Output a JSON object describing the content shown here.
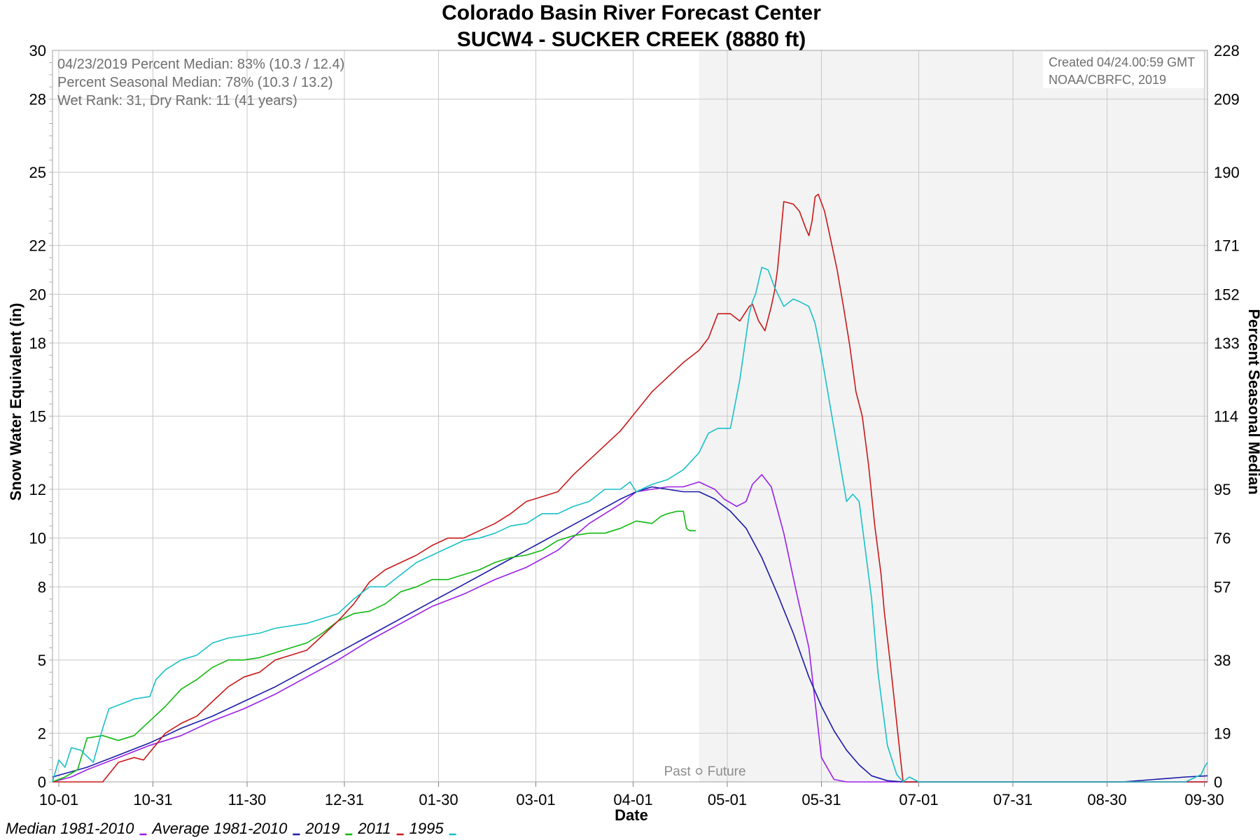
{
  "chart_data": {
    "type": "line",
    "title": "Colorado Basin River Forecast Center",
    "subtitle": "SUCW4 - SUCKER CREEK (8880 ft)",
    "xlabel": "Date",
    "ylabel": "Snow Water Equivalent (in)",
    "y2label": "Percent Seasonal Median",
    "x_ticks": [
      "10-01",
      "10-31",
      "11-30",
      "12-31",
      "01-30",
      "03-01",
      "04-01",
      "05-01",
      "05-31",
      "07-01",
      "07-31",
      "08-30",
      "09-30"
    ],
    "x_tick_days": [
      1,
      31,
      61,
      92,
      122,
      153,
      184,
      214,
      244,
      275,
      305,
      335,
      366
    ],
    "xlim": [
      -1,
      367
    ],
    "y_ticks": [
      0,
      2,
      5,
      8,
      10,
      12,
      15,
      18,
      20,
      22,
      25,
      28,
      30
    ],
    "ylim": [
      0,
      30
    ],
    "y2_ticks": [
      0,
      19,
      38,
      57,
      76,
      95,
      114,
      133,
      152,
      171,
      190,
      209,
      228
    ],
    "y2lim": [
      0,
      228
    ],
    "grid": true,
    "legend_position": "bottom-left",
    "annotations": {
      "stats": [
        "04/23/2019 Percent Median: 83% (10.3 / 12.4)",
        "Percent Seasonal Median: 78% (10.3 / 13.2)",
        "Wet Rank: 31, Dry Rank: 11  (41 years)"
      ],
      "credit": [
        "Created 04/24.00:59 GMT",
        "NOAA/CBRFC, 2019"
      ],
      "past": "Past",
      "future": "Future"
    },
    "forecast_start_day": 205,
    "series": [
      {
        "name": "Median 1981-2010",
        "color": "#9b1ee8",
        "x": [
          -1,
          5,
          10,
          20,
          30,
          40,
          50,
          60,
          70,
          80,
          90,
          100,
          110,
          120,
          130,
          140,
          150,
          160,
          170,
          180,
          185,
          190,
          195,
          200,
          205,
          210,
          213,
          217,
          220,
          222,
          225,
          228,
          232,
          236,
          240,
          244,
          248,
          252,
          256,
          260,
          270,
          280,
          290,
          300,
          310,
          320,
          330,
          340,
          350,
          360,
          367
        ],
        "y": [
          0.0,
          0.2,
          0.5,
          1.0,
          1.5,
          1.9,
          2.5,
          3.0,
          3.6,
          4.3,
          5.0,
          5.8,
          6.5,
          7.2,
          7.7,
          8.3,
          8.8,
          9.5,
          10.6,
          11.4,
          11.9,
          12.0,
          12.1,
          12.1,
          12.3,
          12.0,
          11.6,
          11.3,
          11.5,
          12.2,
          12.6,
          12.1,
          10.2,
          7.8,
          5.5,
          1.0,
          0.1,
          0.0,
          0.0,
          0.0,
          0.0,
          0.0,
          0.0,
          0.0,
          0.0,
          0.0,
          0.0,
          0.0,
          0.0,
          0.0,
          0.0
        ]
      },
      {
        "name": "Average 1981-2010",
        "color": "#1a1aa8",
        "x": [
          -1,
          10,
          20,
          30,
          40,
          50,
          60,
          70,
          80,
          90,
          100,
          110,
          120,
          130,
          140,
          150,
          160,
          170,
          180,
          185,
          190,
          195,
          200,
          205,
          210,
          215,
          220,
          225,
          230,
          235,
          240,
          244,
          248,
          252,
          256,
          260,
          265,
          270,
          280,
          290,
          300,
          310,
          320,
          330,
          340,
          350,
          355,
          360,
          367
        ],
        "y": [
          0.2,
          0.6,
          1.1,
          1.6,
          2.2,
          2.7,
          3.3,
          3.9,
          4.6,
          5.3,
          6.0,
          6.7,
          7.4,
          8.1,
          8.8,
          9.5,
          10.2,
          10.9,
          11.6,
          11.9,
          12.1,
          12.0,
          11.9,
          11.9,
          11.6,
          11.1,
          10.4,
          9.2,
          7.7,
          6.1,
          4.3,
          3.1,
          2.1,
          1.3,
          0.7,
          0.25,
          0.05,
          0.0,
          0.0,
          0.0,
          0.0,
          0.0,
          0.0,
          0.0,
          0.0,
          0.1,
          0.15,
          0.2,
          0.25
        ]
      },
      {
        "name": "2019",
        "color": "#10b810",
        "x": [
          -1,
          3,
          7,
          10,
          15,
          20,
          25,
          30,
          35,
          40,
          45,
          50,
          55,
          60,
          65,
          70,
          75,
          80,
          85,
          90,
          95,
          100,
          105,
          110,
          115,
          120,
          125,
          130,
          135,
          140,
          145,
          150,
          155,
          160,
          165,
          170,
          175,
          180,
          185,
          190,
          193,
          195,
          198,
          200,
          201,
          202,
          204
        ],
        "y": [
          0.0,
          0.2,
          0.5,
          1.8,
          1.9,
          1.7,
          1.9,
          2.5,
          3.1,
          3.8,
          4.2,
          4.7,
          5.0,
          5.0,
          5.1,
          5.3,
          5.5,
          5.7,
          6.1,
          6.6,
          6.9,
          7.0,
          7.3,
          7.8,
          8.0,
          8.3,
          8.3,
          8.5,
          8.7,
          9.0,
          9.2,
          9.3,
          9.5,
          9.9,
          10.1,
          10.2,
          10.2,
          10.4,
          10.7,
          10.6,
          10.9,
          11.0,
          11.1,
          11.1,
          10.4,
          10.3,
          10.3
        ]
      },
      {
        "name": "2011",
        "color": "#c81818",
        "x": [
          -1,
          8,
          15,
          20,
          25,
          28,
          35,
          40,
          45,
          50,
          55,
          60,
          65,
          70,
          75,
          80,
          85,
          90,
          95,
          100,
          105,
          110,
          115,
          120,
          125,
          130,
          135,
          140,
          145,
          150,
          155,
          160,
          165,
          170,
          175,
          180,
          185,
          190,
          195,
          200,
          205,
          208,
          211,
          215,
          218,
          221,
          222,
          224,
          226,
          228,
          229,
          230,
          232,
          235,
          237,
          239,
          240,
          241,
          242,
          243,
          245,
          247,
          249,
          251,
          253,
          255,
          257,
          259,
          261,
          263,
          264,
          266,
          270,
          280,
          290,
          300,
          310,
          320,
          330,
          340,
          350,
          360,
          367
        ],
        "y": [
          0.0,
          0.0,
          0.0,
          0.8,
          1.0,
          0.9,
          2.0,
          2.4,
          2.7,
          3.3,
          3.9,
          4.3,
          4.5,
          5.0,
          5.2,
          5.4,
          6.0,
          6.6,
          7.3,
          8.2,
          8.7,
          9.0,
          9.3,
          9.7,
          10.0,
          10.0,
          10.3,
          10.6,
          11.0,
          11.5,
          11.7,
          11.9,
          12.6,
          13.2,
          13.8,
          14.4,
          15.2,
          16.0,
          16.6,
          17.2,
          17.7,
          18.2,
          19.2,
          19.2,
          18.9,
          19.5,
          19.6,
          18.9,
          18.5,
          19.5,
          20.1,
          21.0,
          23.8,
          23.7,
          23.4,
          22.7,
          22.4,
          23.0,
          24.0,
          24.1,
          23.4,
          22.2,
          21.0,
          19.5,
          17.9,
          16.0,
          15.0,
          13.0,
          10.5,
          8.5,
          7.0,
          4.8,
          0.0,
          0.0,
          0.0,
          0.0,
          0.0,
          0.0,
          0.0,
          0.0,
          0.0,
          0.0,
          0.0
        ]
      },
      {
        "name": "1995",
        "color": "#18c0c8",
        "x": [
          -1,
          1,
          3,
          5,
          8,
          12,
          15,
          17,
          25,
          30,
          32,
          35,
          40,
          45,
          50,
          55,
          60,
          65,
          70,
          80,
          90,
          95,
          100,
          105,
          110,
          115,
          120,
          125,
          130,
          135,
          140,
          145,
          150,
          155,
          160,
          165,
          170,
          175,
          180,
          183,
          185,
          190,
          195,
          200,
          205,
          208,
          211,
          215,
          218,
          221,
          222,
          223,
          225,
          227,
          229,
          232,
          235,
          237,
          240,
          242,
          244,
          246,
          248,
          250,
          252,
          254,
          256,
          258,
          260,
          262,
          265,
          268,
          270,
          272,
          275,
          280,
          290,
          300,
          310,
          320,
          330,
          340,
          350,
          360,
          365,
          366,
          367
        ],
        "y": [
          0.0,
          0.9,
          0.6,
          1.4,
          1.3,
          0.8,
          2.2,
          3.0,
          3.4,
          3.5,
          4.2,
          4.6,
          5.0,
          5.2,
          5.7,
          5.9,
          6.0,
          6.1,
          6.3,
          6.5,
          6.9,
          7.5,
          8.0,
          8.0,
          8.5,
          9.0,
          9.3,
          9.6,
          9.9,
          10.0,
          10.2,
          10.5,
          10.6,
          11.0,
          11.0,
          11.3,
          11.5,
          12.0,
          12.0,
          12.3,
          11.9,
          12.2,
          12.4,
          12.8,
          13.5,
          14.3,
          14.5,
          14.5,
          16.5,
          19.2,
          19.7,
          20.0,
          21.1,
          21.0,
          20.3,
          19.5,
          19.8,
          19.7,
          19.5,
          18.8,
          17.5,
          16.0,
          14.5,
          13.0,
          11.5,
          11.8,
          11.5,
          9.5,
          7.5,
          4.5,
          1.5,
          0.3,
          0.0,
          0.2,
          0.0,
          0.0,
          0.0,
          0.0,
          0.0,
          0.0,
          0.0,
          0.0,
          0.0,
          0.0,
          0.3,
          0.6,
          0.8
        ]
      }
    ]
  }
}
